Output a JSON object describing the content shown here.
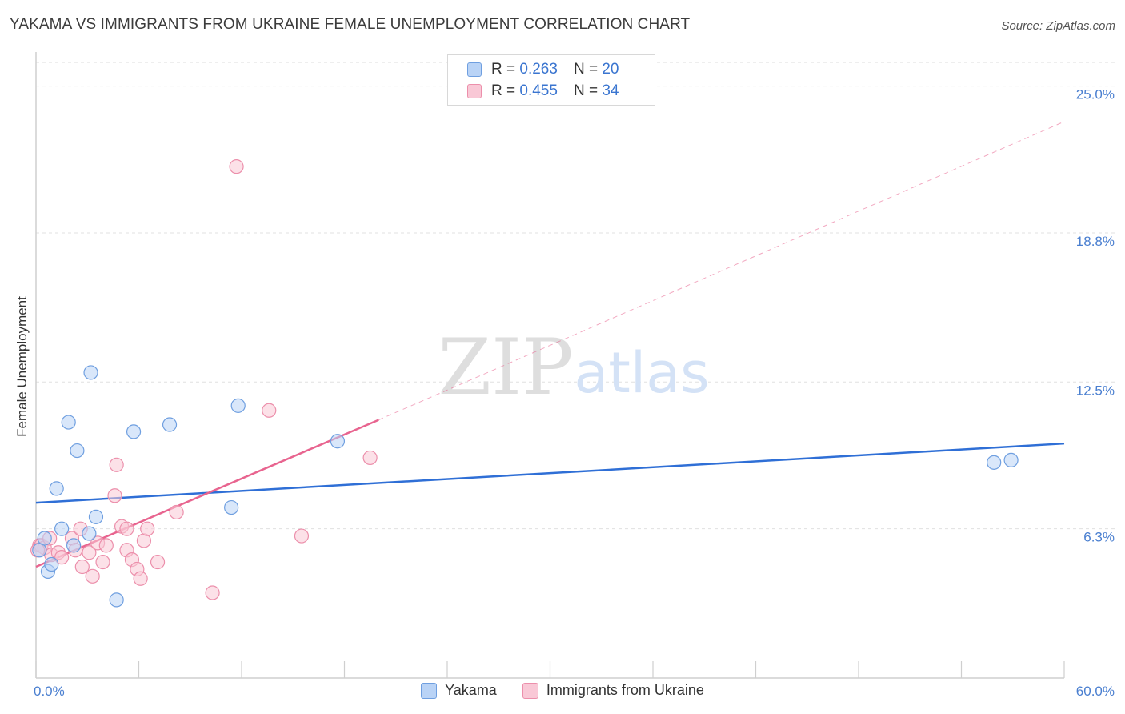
{
  "header": {
    "title": "YAKAMA VS IMMIGRANTS FROM UKRAINE FEMALE UNEMPLOYMENT CORRELATION CHART",
    "source": "Source: ZipAtlas.com"
  },
  "watermark": {
    "zip": "ZIP",
    "atlas": "atlas"
  },
  "legend": {
    "rows": [
      {
        "r_label": "R =",
        "r_value": "0.263",
        "n_label": "N =",
        "n_value": "20",
        "color": "#b9d3f6",
        "border": "#6f9fe0"
      },
      {
        "r_label": "R =",
        "r_value": "0.455",
        "n_label": "N =",
        "n_value": "34",
        "color": "#f9c8d6",
        "border": "#ec8fab"
      }
    ]
  },
  "chart_data": {
    "type": "scatter",
    "title": "YAKAMA VS IMMIGRANTS FROM UKRAINE FEMALE UNEMPLOYMENT CORRELATION CHART",
    "xlabel": "",
    "ylabel": "Female Unemployment",
    "xlim": [
      0,
      60
    ],
    "ylim": [
      0,
      26
    ],
    "x_tick_labels": [
      "0.0%",
      "60.0%"
    ],
    "y_ticks": [
      6.3,
      12.5,
      18.8,
      25.0
    ],
    "y_tick_labels": [
      "6.3%",
      "12.5%",
      "18.8%",
      "25.0%"
    ],
    "grid": true,
    "series": [
      {
        "name": "Yakama",
        "color": "#b9d3f6",
        "stroke": "#6f9fe0",
        "line_color": "#2f6fd6",
        "trend": {
          "x": [
            0,
            60
          ],
          "y": [
            7.4,
            9.9
          ],
          "style": "solid"
        },
        "points": [
          [
            0.2,
            5.4
          ],
          [
            0.5,
            5.9
          ],
          [
            0.7,
            4.5
          ],
          [
            0.9,
            4.8
          ],
          [
            1.2,
            8.0
          ],
          [
            1.5,
            6.3
          ],
          [
            1.9,
            10.8
          ],
          [
            2.2,
            5.6
          ],
          [
            2.4,
            9.6
          ],
          [
            3.1,
            6.1
          ],
          [
            3.2,
            12.9
          ],
          [
            3.5,
            6.8
          ],
          [
            4.7,
            3.3
          ],
          [
            5.7,
            10.4
          ],
          [
            7.8,
            10.7
          ],
          [
            11.4,
            7.2
          ],
          [
            11.8,
            11.5
          ],
          [
            17.6,
            10.0
          ],
          [
            55.9,
            9.1
          ],
          [
            56.9,
            9.2
          ]
        ]
      },
      {
        "name": "Immigrants from Ukraine",
        "color": "#f9c8d6",
        "stroke": "#ec8fab",
        "line_color": "#e8648f",
        "trend": {
          "x": [
            0,
            20
          ],
          "y": [
            4.7,
            10.9
          ],
          "style": "solid",
          "extended": {
            "x": [
              20,
              60
            ],
            "y": [
              10.9,
              23.5
            ],
            "style": "dashed"
          }
        },
        "points": [
          [
            0.2,
            5.6
          ],
          [
            0.3,
            5.6
          ],
          [
            0.5,
            5.5
          ],
          [
            0.8,
            5.9
          ],
          [
            0.9,
            5.2
          ],
          [
            1.3,
            5.3
          ],
          [
            1.5,
            5.1
          ],
          [
            2.1,
            5.9
          ],
          [
            2.3,
            5.4
          ],
          [
            2.6,
            6.3
          ],
          [
            2.7,
            4.7
          ],
          [
            3.1,
            5.3
          ],
          [
            3.3,
            4.3
          ],
          [
            3.6,
            5.7
          ],
          [
            3.9,
            4.9
          ],
          [
            4.1,
            5.6
          ],
          [
            4.6,
            7.7
          ],
          [
            4.7,
            9.0
          ],
          [
            5.0,
            6.4
          ],
          [
            5.3,
            6.3
          ],
          [
            5.3,
            5.4
          ],
          [
            5.6,
            5.0
          ],
          [
            5.9,
            4.6
          ],
          [
            6.1,
            4.2
          ],
          [
            6.3,
            5.8
          ],
          [
            6.5,
            6.3
          ],
          [
            7.1,
            4.9
          ],
          [
            8.2,
            7.0
          ],
          [
            10.3,
            3.6
          ],
          [
            11.7,
            21.6
          ],
          [
            13.6,
            11.3
          ],
          [
            15.5,
            6.0
          ],
          [
            19.5,
            9.3
          ],
          [
            0.1,
            5.4
          ]
        ]
      }
    ]
  },
  "bottom_legend": [
    {
      "label": "Yakama",
      "color": "#b9d3f6",
      "border": "#6f9fe0"
    },
    {
      "label": "Immigrants from Ukraine",
      "color": "#f9c8d6",
      "border": "#ec8fab"
    }
  ]
}
